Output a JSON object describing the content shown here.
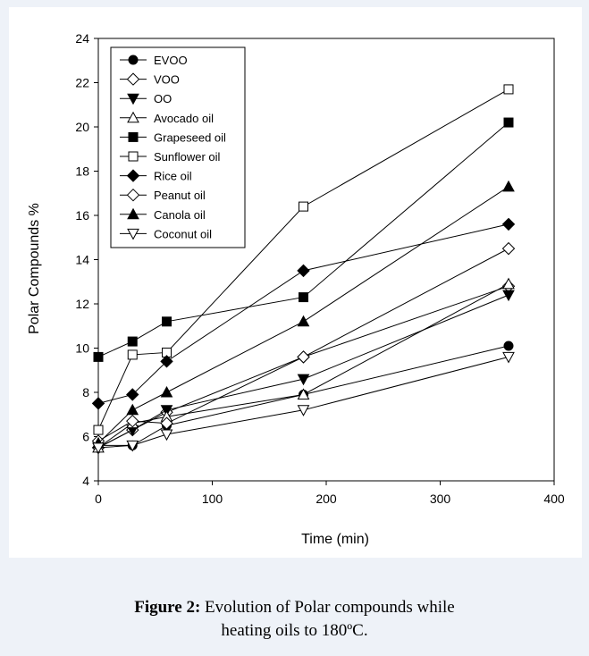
{
  "chart_data": {
    "type": "line",
    "title": "",
    "xlabel": "Time (min)",
    "ylabel": "Polar Compounds %",
    "xlim": [
      0,
      400
    ],
    "ylim": [
      4,
      24
    ],
    "x_ticks": [
      "0",
      "100",
      "200",
      "300",
      "400"
    ],
    "y_ticks": [
      "4",
      "6",
      "8",
      "10",
      "12",
      "14",
      "16",
      "18",
      "20",
      "22",
      "24"
    ],
    "grid": false,
    "legend_position": "top-left",
    "x": [
      0,
      30,
      60,
      180,
      360
    ],
    "series": [
      {
        "name": "EVOO",
        "marker": "circle-filled",
        "values": [
          5.6,
          5.6,
          6.5,
          7.9,
          10.1
        ]
      },
      {
        "name": "VOO",
        "marker": "diamond-open",
        "values": [
          5.5,
          6.3,
          7.1,
          9.6,
          12.8
        ]
      },
      {
        "name": "OO",
        "marker": "triangle-down-filled",
        "values": [
          5.5,
          6.3,
          7.2,
          8.6,
          12.4
        ]
      },
      {
        "name": "Avocado oil",
        "marker": "triangle-up-open",
        "values": [
          5.5,
          6.6,
          6.9,
          7.9,
          12.9
        ]
      },
      {
        "name": "Grapeseed oil",
        "marker": "square-filled",
        "values": [
          9.6,
          10.3,
          11.2,
          12.3,
          20.2
        ]
      },
      {
        "name": "Sunflower oil",
        "marker": "square-open",
        "values": [
          6.3,
          9.7,
          9.8,
          16.4,
          21.7
        ]
      },
      {
        "name": "Rice oil",
        "marker": "diamond-filled",
        "values": [
          7.5,
          7.9,
          9.4,
          13.5,
          15.6
        ]
      },
      {
        "name": "Peanut oil",
        "marker": "diamond-open",
        "values": [
          5.8,
          6.7,
          6.6,
          9.6,
          14.5
        ]
      },
      {
        "name": "Canola oil",
        "marker": "triangle-up-filled",
        "values": [
          5.7,
          7.2,
          8.0,
          11.2,
          17.3
        ]
      },
      {
        "name": "Coconut oil",
        "marker": "triangle-down-open",
        "values": [
          5.5,
          5.6,
          6.1,
          7.2,
          9.6
        ]
      }
    ]
  },
  "caption": {
    "label": "Figure 2:",
    "text_line1": " Evolution of Polar compounds while",
    "text_line2": "heating oils to 180ºC."
  },
  "colors": {
    "background": "#eef2f8",
    "panel": "#ffffff",
    "ink": "#000000"
  }
}
